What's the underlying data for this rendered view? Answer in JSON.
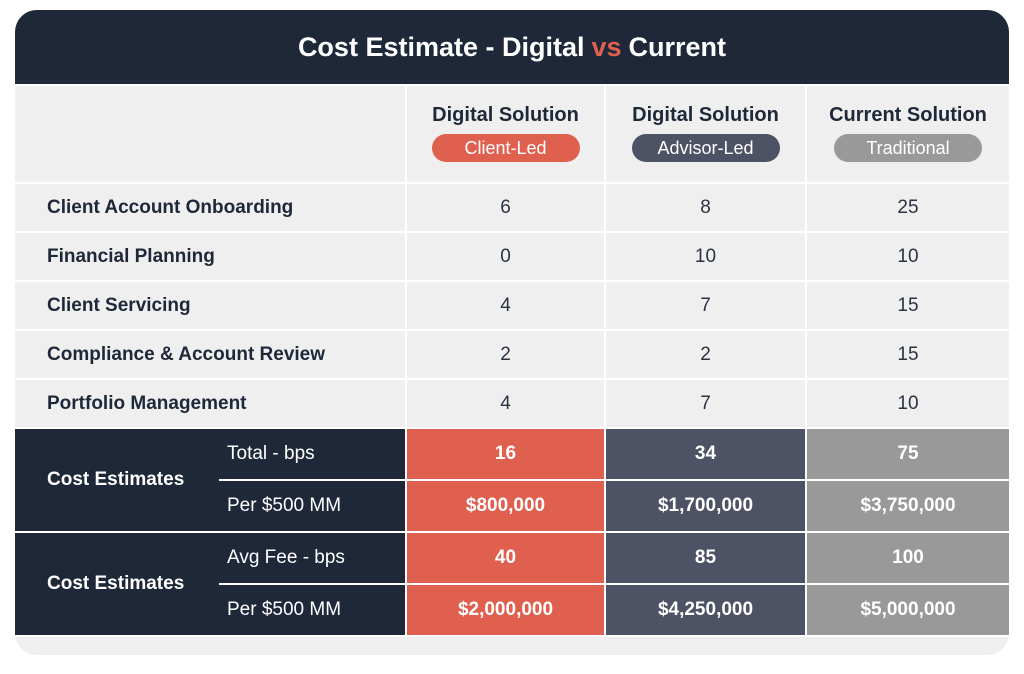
{
  "title": {
    "before": "Cost Estimate - Digital",
    "vs": "vs",
    "after": "Current"
  },
  "colors": {
    "header_dark": "#1e2838",
    "client_led": "#e0604f",
    "advisor_led": "#4d5264",
    "traditional": "#999999",
    "row_bg": "#efefef"
  },
  "columns": [
    {
      "heading": "Digital Solution",
      "tag": "Client-Led"
    },
    {
      "heading": "Digital Solution",
      "tag": "Advisor-Led"
    },
    {
      "heading": "Current Solution",
      "tag": "Traditional"
    }
  ],
  "rows": [
    {
      "label": "Client Account Onboarding",
      "values": [
        "6",
        "8",
        "25"
      ]
    },
    {
      "label": "Financial Planning",
      "values": [
        "0",
        "10",
        "10"
      ]
    },
    {
      "label": "Client Servicing",
      "values": [
        "4",
        "7",
        "15"
      ]
    },
    {
      "label": "Compliance & Account Review",
      "values": [
        "2",
        "2",
        "15"
      ]
    },
    {
      "label": "Portfolio Management",
      "values": [
        "4",
        "7",
        "10"
      ]
    }
  ],
  "cost_groups": [
    {
      "label": "Cost Estimates",
      "lines": [
        {
          "label": "Total - bps",
          "values": [
            "16",
            "34",
            "75"
          ]
        },
        {
          "label": "Per $500 MM",
          "values": [
            "$800,000",
            "$1,700,000",
            "$3,750,000"
          ]
        }
      ]
    },
    {
      "label": "Cost Estimates",
      "lines": [
        {
          "label": "Avg Fee - bps",
          "values": [
            "40",
            "85",
            "100"
          ]
        },
        {
          "label": "Per $500 MM",
          "values": [
            "$2,000,000",
            "$4,250,000",
            "$5,000,000"
          ]
        }
      ]
    }
  ],
  "chart_data": {
    "type": "table",
    "title": "Cost Estimate - Digital vs Current",
    "columns": [
      "Digital Solution (Client-Led)",
      "Digital Solution (Advisor-Led)",
      "Current Solution (Traditional)"
    ],
    "rows": [
      {
        "label": "Client Account Onboarding",
        "values": [
          6,
          8,
          25
        ]
      },
      {
        "label": "Financial Planning",
        "values": [
          0,
          10,
          10
        ]
      },
      {
        "label": "Client Servicing",
        "values": [
          4,
          7,
          15
        ]
      },
      {
        "label": "Compliance & Account Review",
        "values": [
          2,
          2,
          15
        ]
      },
      {
        "label": "Portfolio Management",
        "values": [
          4,
          7,
          10
        ]
      },
      {
        "label": "Cost Estimates - Total - bps",
        "values": [
          16,
          34,
          75
        ]
      },
      {
        "label": "Cost Estimates - Per $500 MM",
        "values": [
          800000,
          1700000,
          3750000
        ]
      },
      {
        "label": "Cost Estimates - Avg Fee - bps",
        "values": [
          40,
          85,
          100
        ]
      },
      {
        "label": "Cost Estimates - Per $500 MM",
        "values": [
          2000000,
          4250000,
          5000000
        ]
      }
    ]
  }
}
